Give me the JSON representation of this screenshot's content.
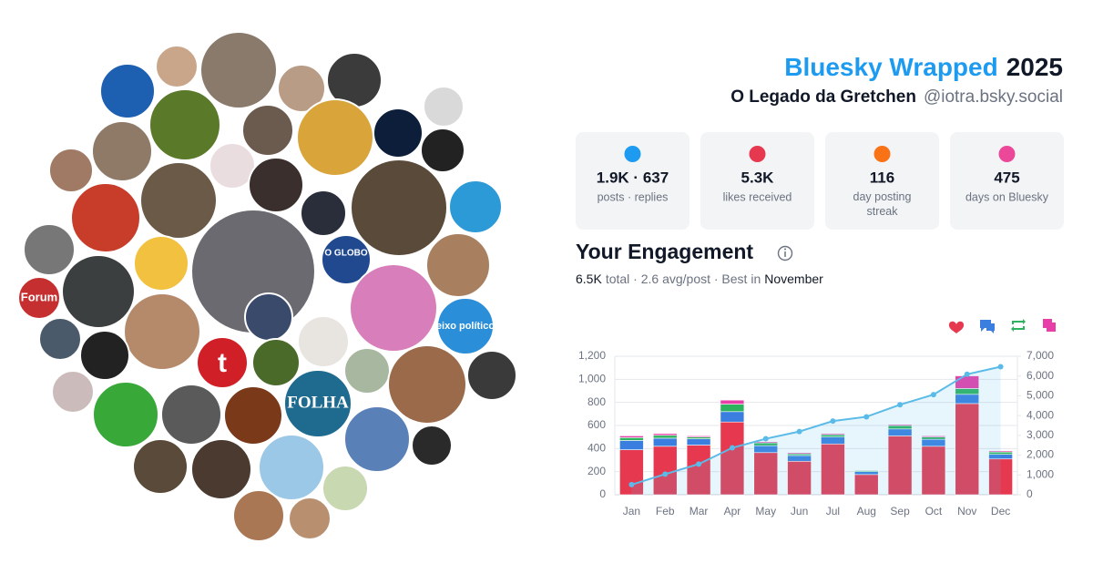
{
  "header": {
    "title": "Bluesky Wrapped",
    "year": "2025",
    "name": "O Legado da Gretchen",
    "handle": "@iotra.bsky.social"
  },
  "avatar_texts": [
    "Forum",
    "O GLOBO",
    "FOLHA",
    "t",
    "eixo político"
  ],
  "stats": [
    {
      "value": "1.9K · 637",
      "label": "posts · replies"
    },
    {
      "value": "5.3K",
      "label": "likes received"
    },
    {
      "value": "116",
      "label": "day posting streak"
    },
    {
      "value": "475",
      "label": "days on Bluesky"
    }
  ],
  "engagement": {
    "title": "Your Engagement",
    "total": "6.5K",
    "summary": "total · 2.6 avg/post · Best in",
    "best": "November"
  },
  "chart_data": {
    "type": "bar",
    "stacked": true,
    "categories": [
      "Jan",
      "Feb",
      "Mar",
      "Apr",
      "May",
      "Jun",
      "Jul",
      "Aug",
      "Sep",
      "Oct",
      "Nov",
      "Dec"
    ],
    "series": [
      {
        "color": "#e63950",
        "values": [
          390,
          420,
          430,
          630,
          365,
          290,
          440,
          175,
          510,
          420,
          790,
          310
        ]
      },
      {
        "color": "#3a7fe0",
        "values": [
          80,
          70,
          55,
          90,
          60,
          50,
          60,
          25,
          60,
          60,
          80,
          40
        ]
      },
      {
        "color": "#2db35d",
        "values": [
          25,
          25,
          15,
          65,
          25,
          15,
          20,
          10,
          30,
          20,
          50,
          20
        ]
      },
      {
        "color": "#e83ea8",
        "values": [
          15,
          15,
          10,
          35,
          10,
          10,
          10,
          5,
          10,
          10,
          110,
          10
        ]
      },
      {
        "type": "line",
        "axis": "y2",
        "color": "#5bbbe8",
        "values": [
          510,
          1040,
          1550,
          2370,
          2830,
          3195,
          3725,
          3940,
          4550,
          5060,
          6090,
          6470
        ]
      }
    ],
    "ylim": [
      0,
      1200
    ],
    "yticks": [
      0,
      200,
      400,
      600,
      800,
      {
        "value": 1000,
        "label": "1,000"
      },
      {
        "value": 1200,
        "label": "1,200"
      }
    ],
    "y2lim": [
      0,
      7000
    ],
    "y2ticks": [
      0,
      {
        "value": 1000,
        "label": "1,000"
      },
      {
        "value": 2000,
        "label": "2,000"
      },
      {
        "value": 3000,
        "label": "3,000"
      },
      {
        "value": 4000,
        "label": "4,000"
      },
      {
        "value": 5000,
        "label": "5,000"
      },
      {
        "value": 6000,
        "label": "6,000"
      },
      {
        "value": 7000,
        "label": "7,000"
      }
    ],
    "grid": true
  }
}
